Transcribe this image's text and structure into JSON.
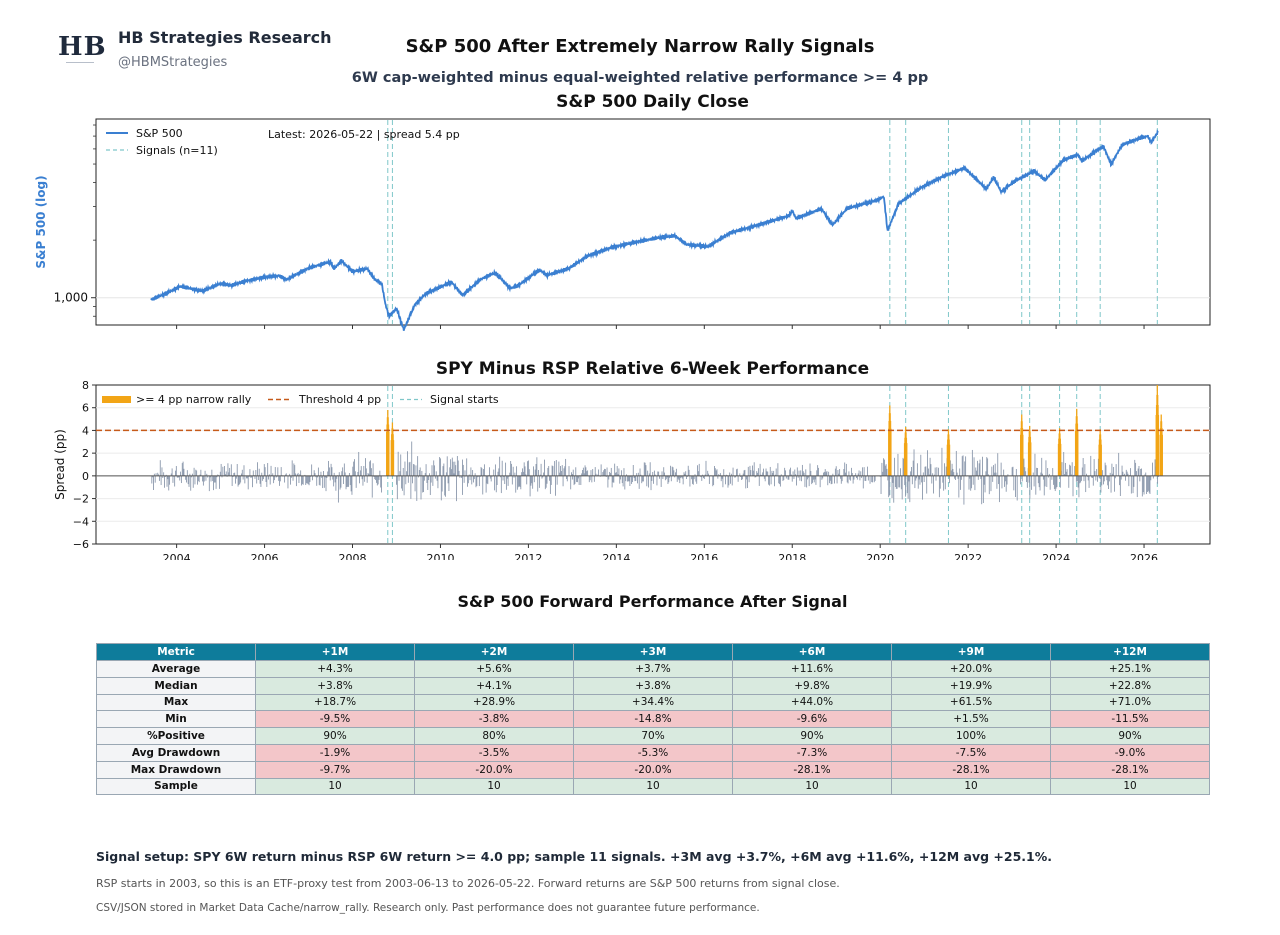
{
  "header": {
    "logo_text": "HB",
    "brand": "HB Strategies Research",
    "handle": "@HBMStrategies",
    "title": "S&P 500 After Extremely Narrow Rally Signals",
    "subtitle": "6W cap-weighted minus equal-weighted relative performance >= 4 pp"
  },
  "colors": {
    "price_line": "#3a7fd1",
    "signal_line": "#7fc7c9",
    "narrow_bar": "#f2a516",
    "threshold": "#c65a1a",
    "spread_bar": "#8c99ad",
    "table_header": "#0e7c9b",
    "positive_cell": "#d9eadf",
    "negative_cell": "#f3c6c9"
  },
  "chart_data": [
    {
      "type": "line",
      "title": "S&P 500 Daily Close",
      "ylabel": "S&P 500 (log)",
      "yscale": "log",
      "yticks": [
        "1,000"
      ],
      "grid": false,
      "legend_position": "top-left",
      "legend": [
        "S&P 500",
        "Signals (n=11)"
      ],
      "annotation": "Latest: 2026-05-22 | spread 5.4 pp",
      "xlim": [
        "2002-03",
        "2027-07"
      ],
      "series": [
        {
          "name": "S&P 500",
          "points": [
            [
              "2003-06",
              975
            ],
            [
              "2003-10",
              1050
            ],
            [
              "2004-02",
              1145
            ],
            [
              "2004-08",
              1085
            ],
            [
              "2005-01",
              1185
            ],
            [
              "2005-04",
              1160
            ],
            [
              "2005-08",
              1225
            ],
            [
              "2006-01",
              1280
            ],
            [
              "2006-05",
              1305
            ],
            [
              "2006-07",
              1245
            ],
            [
              "2007-01",
              1430
            ],
            [
              "2007-07",
              1540
            ],
            [
              "2007-08",
              1420
            ],
            [
              "2007-10",
              1560
            ],
            [
              "2008-01",
              1370
            ],
            [
              "2008-05",
              1420
            ],
            [
              "2008-07",
              1250
            ],
            [
              "2008-09",
              1180
            ],
            [
              "2008-10",
              920
            ],
            [
              "2008-11",
              800
            ],
            [
              "2009-01",
              880
            ],
            [
              "2009-03",
              680
            ],
            [
              "2009-06",
              920
            ],
            [
              "2009-09",
              1050
            ],
            [
              "2010-04",
              1210
            ],
            [
              "2010-07",
              1030
            ],
            [
              "2010-12",
              1250
            ],
            [
              "2011-04",
              1350
            ],
            [
              "2011-08",
              1120
            ],
            [
              "2011-10",
              1150
            ],
            [
              "2012-04",
              1400
            ],
            [
              "2012-06",
              1310
            ],
            [
              "2012-12",
              1420
            ],
            [
              "2013-05",
              1650
            ],
            [
              "2013-12",
              1840
            ],
            [
              "2014-06",
              1950
            ],
            [
              "2014-12",
              2050
            ],
            [
              "2015-05",
              2110
            ],
            [
              "2015-08",
              1900
            ],
            [
              "2016-02",
              1850
            ],
            [
              "2016-08",
              2180
            ],
            [
              "2017-03",
              2380
            ],
            [
              "2017-12",
              2680
            ],
            [
              "2018-01",
              2850
            ],
            [
              "2018-02",
              2600
            ],
            [
              "2018-09",
              2920
            ],
            [
              "2018-12",
              2400
            ],
            [
              "2019-04",
              2930
            ],
            [
              "2019-12",
              3230
            ],
            [
              "2020-02",
              3380
            ],
            [
              "2020-03",
              2240
            ],
            [
              "2020-06",
              3100
            ],
            [
              "2020-12",
              3750
            ],
            [
              "2021-06",
              4300
            ],
            [
              "2021-12",
              4770
            ],
            [
              "2022-06",
              3700
            ],
            [
              "2022-08",
              4280
            ],
            [
              "2022-10",
              3580
            ],
            [
              "2023-02",
              4100
            ],
            [
              "2023-07",
              4590
            ],
            [
              "2023-10",
              4120
            ],
            [
              "2024-03",
              5250
            ],
            [
              "2024-07",
              5600
            ],
            [
              "2024-08",
              5180
            ],
            [
              "2025-01",
              6050
            ],
            [
              "2025-02",
              6150
            ],
            [
              "2025-04",
              4980
            ],
            [
              "2025-07",
              6300
            ],
            [
              "2025-12",
              6850
            ],
            [
              "2026-02",
              7000
            ],
            [
              "2026-03",
              6500
            ],
            [
              "2026-05",
              7450
            ]
          ]
        }
      ],
      "signals": [
        "2008-10-20",
        "2008-11-28",
        "2020-03-20",
        "2020-07-30",
        "2021-07-20",
        "2023-03-20",
        "2023-05-25",
        "2024-01-30",
        "2024-06-20",
        "2025-01-02",
        "2026-04-20"
      ]
    },
    {
      "type": "bar",
      "title": "SPY Minus RSP Relative 6-Week Performance",
      "ylabel": "Spread (pp)",
      "ylim": [
        -6,
        8
      ],
      "yticks": [
        -6,
        -4,
        -2,
        0,
        2,
        4,
        6,
        8
      ],
      "xticks": [
        "2004",
        "2006",
        "2008",
        "2010",
        "2012",
        "2014",
        "2016",
        "2018",
        "2020",
        "2022",
        "2024",
        "2026"
      ],
      "threshold": 4,
      "legend_position": "top-left",
      "legend": [
        ">= 4 pp narrow rally",
        "Threshold 4 pp",
        "Signal starts"
      ],
      "highlight_series": [
        [
          "2008-10-20",
          5.8
        ],
        [
          "2008-11-28",
          4.7
        ],
        [
          "2020-03-20",
          6.2
        ],
        [
          "2020-07-30",
          4.3
        ],
        [
          "2021-07-20",
          4.1
        ],
        [
          "2023-03-20",
          5.4
        ],
        [
          "2023-05-25",
          4.4
        ],
        [
          "2024-01-30",
          4.2
        ],
        [
          "2024-06-20",
          5.9
        ],
        [
          "2025-01-02",
          4.1
        ],
        [
          "2026-04-20",
          8.0
        ],
        [
          "2026-05-22",
          5.4
        ]
      ],
      "episodes": [
        {
          "start": "2003-06",
          "end": "2007-08",
          "amp": 1.6
        },
        {
          "start": "2007-08",
          "end": "2008-09",
          "amp": 2.4
        },
        {
          "start": "2009-01",
          "end": "2010-07",
          "amp": 3.2
        },
        {
          "start": "2010-07",
          "end": "2013-01",
          "amp": 2.0
        },
        {
          "start": "2013-01",
          "end": "2019-12",
          "amp": 1.4
        },
        {
          "start": "2020-01",
          "end": "2022-12",
          "amp": 2.8
        },
        {
          "start": "2023-01",
          "end": "2026-05",
          "amp": 2.4
        }
      ]
    },
    {
      "type": "table",
      "title": "S&P 500 Forward Performance After Signal",
      "columns": [
        "Metric",
        "+1M",
        "+2M",
        "+3M",
        "+6M",
        "+9M",
        "+12M"
      ],
      "rows": [
        {
          "cells": [
            "Average",
            "+4.3%",
            "+5.6%",
            "+3.7%",
            "+11.6%",
            "+20.0%",
            "+25.1%"
          ],
          "tone": "good"
        },
        {
          "cells": [
            "Median",
            "+3.8%",
            "+4.1%",
            "+3.8%",
            "+9.8%",
            "+19.9%",
            "+22.8%"
          ],
          "tone": "good"
        },
        {
          "cells": [
            "Max",
            "+18.7%",
            "+28.9%",
            "+34.4%",
            "+44.0%",
            "+61.5%",
            "+71.0%"
          ],
          "tone": "good"
        },
        {
          "cells": [
            "Min",
            "-9.5%",
            "-3.8%",
            "-14.8%",
            "-9.6%",
            "+1.5%",
            "-11.5%"
          ],
          "tone": "bad",
          "exceptions": {
            "5": "good"
          }
        },
        {
          "cells": [
            "%Positive",
            "90%",
            "80%",
            "70%",
            "90%",
            "100%",
            "90%"
          ],
          "tone": "good"
        },
        {
          "cells": [
            "Avg Drawdown",
            "-1.9%",
            "-3.5%",
            "-5.3%",
            "-7.3%",
            "-7.5%",
            "-9.0%"
          ],
          "tone": "bad"
        },
        {
          "cells": [
            "Max Drawdown",
            "-9.7%",
            "-20.0%",
            "-20.0%",
            "-28.1%",
            "-28.1%",
            "-28.1%"
          ],
          "tone": "bad"
        },
        {
          "cells": [
            "Sample",
            "10",
            "10",
            "10",
            "10",
            "10",
            "10"
          ],
          "tone": "good"
        }
      ]
    }
  ],
  "footer": {
    "setup": "Signal setup: SPY 6W return minus RSP 6W return >= 4.0 pp; sample 11 signals. +3M avg +3.7%, +6M avg +11.6%, +12M avg +25.1%.",
    "note": "RSP starts in 2003, so this is an ETF-proxy test from 2003-06-13 to 2026-05-22. Forward returns are S&P 500 returns from signal close.",
    "disclaimer": "CSV/JSON stored in Market Data Cache/narrow_rally. Research only. Past performance does not guarantee future performance."
  }
}
